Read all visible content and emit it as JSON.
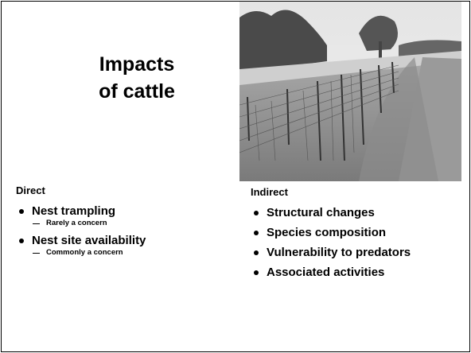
{
  "slide": {
    "title_lines": [
      "Impacts",
      "of cattle"
    ],
    "direct": {
      "heading": "Direct",
      "items": [
        {
          "text": "Nest trampling",
          "sub": [
            "Rarely a concern"
          ]
        },
        {
          "text": "Nest site availability",
          "sub": [
            "Commonly a concern"
          ]
        }
      ]
    },
    "indirect": {
      "heading": "Indirect",
      "items": [
        {
          "text": "Structural changes"
        },
        {
          "text": "Species composition"
        },
        {
          "text": "Vulnerability to predators"
        },
        {
          "text": "Associated activities"
        }
      ]
    }
  }
}
